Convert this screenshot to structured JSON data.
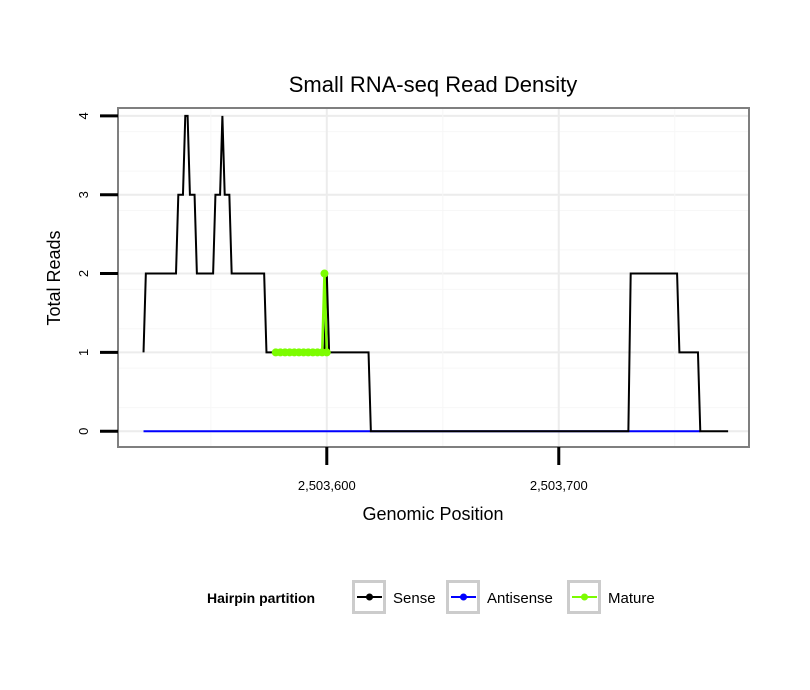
{
  "chart_data": {
    "type": "line",
    "title": "Small RNA-seq Read Density",
    "xlabel": "Genomic Position",
    "ylabel": "Total Reads",
    "xlim": [
      2503510,
      2503782
    ],
    "ylim": [
      -0.2,
      4.1
    ],
    "x_ticks": [
      {
        "value": 2503600,
        "label": "2,503,600"
      },
      {
        "value": 2503700,
        "label": "2,503,700"
      }
    ],
    "y_ticks": [
      {
        "value": 0,
        "label": "0"
      },
      {
        "value": 1,
        "label": "1"
      },
      {
        "value": 2,
        "label": "2"
      },
      {
        "value": 3,
        "label": "3"
      },
      {
        "value": 4,
        "label": "4"
      }
    ],
    "grid": true,
    "legend": {
      "title": "Hairpin partition",
      "position": "bottom",
      "entries": [
        {
          "name": "Sense",
          "color": "#000000"
        },
        {
          "name": "Antisense",
          "color": "#0000ff"
        },
        {
          "name": "Mature",
          "color": "#7cfc00"
        }
      ]
    },
    "series": [
      {
        "name": "Sense",
        "color": "#000000",
        "x": [
          2503521,
          2503522,
          2503523,
          2503524,
          2503535,
          2503536,
          2503537,
          2503538,
          2503539,
          2503540,
          2503541,
          2503542,
          2503543,
          2503544,
          2503545,
          2503546,
          2503551,
          2503552,
          2503553,
          2503554,
          2503555,
          2503556,
          2503557,
          2503558,
          2503559,
          2503560,
          2503573,
          2503574,
          2503599,
          2503600,
          2503601,
          2503602,
          2503603,
          2503618,
          2503619,
          2503730,
          2503731,
          2503732,
          2503750,
          2503751,
          2503752,
          2503756,
          2503757,
          2503758,
          2503760,
          2503761,
          2503762,
          2503773
        ],
        "y": [
          1,
          2,
          2,
          2,
          2,
          3,
          3,
          3,
          4,
          4,
          3,
          3,
          3,
          2,
          2,
          2,
          2,
          3,
          3,
          3,
          4,
          3,
          3,
          3,
          2,
          2,
          2,
          1,
          1,
          2,
          1,
          1,
          1,
          1,
          0,
          0,
          2,
          2,
          2,
          2,
          1,
          1,
          1,
          1,
          1,
          0,
          0,
          0
        ]
      },
      {
        "name": "Antisense",
        "color": "#0000ff",
        "x": [
          2503521,
          2503761
        ],
        "y": [
          0,
          0
        ]
      },
      {
        "name": "Mature",
        "color": "#7cfc00",
        "x": [
          2503578,
          2503580,
          2503582,
          2503584,
          2503586,
          2503588,
          2503590,
          2503592,
          2503594,
          2503596,
          2503598,
          2503599,
          2503600
        ],
        "y": [
          1,
          1,
          1,
          1,
          1,
          1,
          1,
          1,
          1,
          1,
          1,
          2,
          1
        ]
      }
    ]
  }
}
